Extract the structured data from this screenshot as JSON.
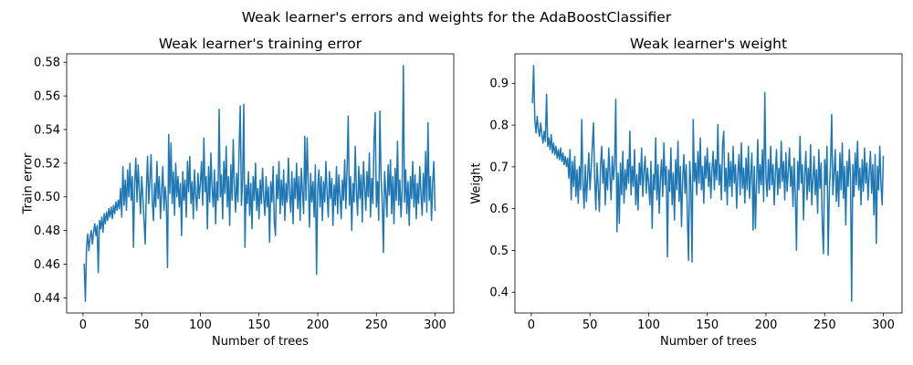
{
  "figure": {
    "suptitle": "Weak learner's errors and weights for the AdaBoostClassifier",
    "line_color": "#1f77b4",
    "background_color": "#ffffff",
    "text_color": "#000000"
  },
  "chart_data": [
    {
      "type": "line",
      "title": "Weak learner's training error",
      "xlabel": "Number of trees",
      "ylabel": "Train error",
      "series_name": "train_error",
      "x_start": 1,
      "x_end": 300,
      "xlim": [
        -13.95,
        315.95
      ],
      "ylim": [
        0.431,
        0.585
      ],
      "xticks": [
        0,
        50,
        100,
        150,
        200,
        250,
        300
      ],
      "xtick_labels": [
        "0",
        "50",
        "100",
        "150",
        "200",
        "250",
        "300"
      ],
      "yticks": [
        0.44,
        0.46,
        0.48,
        0.5,
        0.52,
        0.54,
        0.56,
        0.58
      ],
      "ytick_labels": [
        "0.44",
        "0.46",
        "0.48",
        "0.50",
        "0.52",
        "0.54",
        "0.56",
        "0.58"
      ],
      "grid": false,
      "legend": null,
      "line_color": "#1f77b4",
      "values": [
        0.46,
        0.438,
        0.47,
        0.478,
        0.468,
        0.476,
        0.48,
        0.472,
        0.479,
        0.484,
        0.477,
        0.483,
        0.455,
        0.486,
        0.481,
        0.488,
        0.479,
        0.49,
        0.484,
        0.491,
        0.486,
        0.493,
        0.488,
        0.494,
        0.487,
        0.495,
        0.49,
        0.497,
        0.492,
        0.498,
        0.493,
        0.505,
        0.488,
        0.518,
        0.495,
        0.51,
        0.492,
        0.516,
        0.5,
        0.52,
        0.498,
        0.512,
        0.47,
        0.508,
        0.523,
        0.497,
        0.519,
        0.504,
        0.49,
        0.512,
        0.5,
        0.486,
        0.472,
        0.505,
        0.524,
        0.496,
        0.51,
        0.525,
        0.498,
        0.486,
        0.508,
        0.494,
        0.521,
        0.499,
        0.512,
        0.487,
        0.503,
        0.518,
        0.492,
        0.506,
        0.497,
        0.458,
        0.537,
        0.502,
        0.532,
        0.496,
        0.515,
        0.489,
        0.52,
        0.5,
        0.512,
        0.494,
        0.508,
        0.477,
        0.515,
        0.498,
        0.51,
        0.488,
        0.521,
        0.503,
        0.524,
        0.496,
        0.509,
        0.487,
        0.516,
        0.501,
        0.492,
        0.514,
        0.499,
        0.508,
        0.521,
        0.495,
        0.535,
        0.503,
        0.512,
        0.481,
        0.518,
        0.497,
        0.526,
        0.505,
        0.494,
        0.516,
        0.484,
        0.509,
        0.498,
        0.552,
        0.5,
        0.513,
        0.487,
        0.521,
        0.502,
        0.53,
        0.494,
        0.512,
        0.483,
        0.519,
        0.498,
        0.534,
        0.506,
        0.491,
        0.514,
        0.497,
        0.528,
        0.554,
        0.495,
        0.509,
        0.555,
        0.47,
        0.507,
        0.496,
        0.515,
        0.489,
        0.508,
        0.481,
        0.512,
        0.498,
        0.52,
        0.492,
        0.505,
        0.487,
        0.51,
        0.496,
        0.517,
        0.5,
        0.489,
        0.512,
        0.494,
        0.506,
        0.473,
        0.509,
        0.497,
        0.518,
        0.485,
        0.477,
        0.513,
        0.499,
        0.521,
        0.49,
        0.51,
        0.495,
        0.516,
        0.486,
        0.508,
        0.497,
        0.523,
        0.502,
        0.491,
        0.515,
        0.484,
        0.511,
        0.499,
        0.52,
        0.493,
        0.512,
        0.486,
        0.517,
        0.503,
        0.49,
        0.536,
        0.498,
        0.535,
        0.508,
        0.482,
        0.514,
        0.497,
        0.509,
        0.488,
        0.519,
        0.454,
        0.505,
        0.516,
        0.494,
        0.512,
        0.486,
        0.509,
        0.497,
        0.521,
        0.502,
        0.488,
        0.515,
        0.499,
        0.511,
        0.483,
        0.507,
        0.495,
        0.518,
        0.49,
        0.513,
        0.501,
        0.487,
        0.51,
        0.498,
        0.522,
        0.493,
        0.516,
        0.548,
        0.495,
        0.512,
        0.48,
        0.508,
        0.497,
        0.53,
        0.503,
        0.489,
        0.518,
        0.499,
        0.513,
        0.485,
        0.521,
        0.506,
        0.492,
        0.515,
        0.5,
        0.526,
        0.488,
        0.511,
        0.496,
        0.533,
        0.55,
        0.494,
        0.509,
        0.486,
        0.551,
        0.512,
        0.497,
        0.467,
        0.515,
        0.503,
        0.488,
        0.519,
        0.501,
        0.522,
        0.49,
        0.512,
        0.484,
        0.517,
        0.498,
        0.533,
        0.495,
        0.51,
        0.488,
        0.505,
        0.578,
        0.497,
        0.516,
        0.49,
        0.509,
        0.483,
        0.512,
        0.499,
        0.521,
        0.494,
        0.513,
        0.487,
        0.508,
        0.496,
        0.518,
        0.502,
        0.489,
        0.514,
        0.497,
        0.527,
        0.491,
        0.544,
        0.498,
        0.512,
        0.486,
        0.509,
        0.521,
        0.492
      ]
    },
    {
      "type": "line",
      "title": "Weak learner's weight",
      "xlabel": "Number of trees",
      "ylabel": "Weight",
      "series_name": "weight",
      "x_start": 1,
      "x_end": 300,
      "xlim": [
        -13.95,
        315.95
      ],
      "ylim": [
        0.3503,
        0.9706
      ],
      "xticks": [
        0,
        50,
        100,
        150,
        200,
        250,
        300
      ],
      "xtick_labels": [
        "0",
        "50",
        "100",
        "150",
        "200",
        "250",
        "300"
      ],
      "yticks": [
        0.4,
        0.5,
        0.6,
        0.7,
        0.8,
        0.9
      ],
      "ytick_labels": [
        "0.4",
        "0.5",
        "0.6",
        "0.7",
        "0.8",
        "0.9"
      ],
      "grid": false,
      "legend": null,
      "line_color": "#1f77b4",
      "values_derived_from": "chart_data.0.values",
      "derivation_formula": "weight = ln((1 - error) / error) + ln(2)",
      "approx_value_range": [
        0.39,
        0.94
      ]
    }
  ]
}
